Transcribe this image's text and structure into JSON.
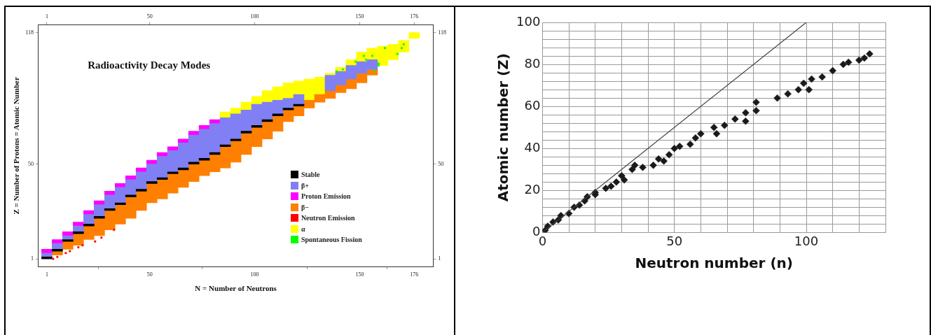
{
  "chart_data": [
    {
      "type": "bar",
      "title": "Radioactivity Decay Modes",
      "xlabel": "N = Number of Neutrons",
      "ylabel": "Z = Number of Protons = Atomic Number",
      "xlim": [
        -3,
        185
      ],
      "xticks": [
        1,
        50,
        100,
        150,
        176
      ],
      "x2lim": [
        -3,
        185
      ],
      "x2ticks": [
        1,
        50,
        100,
        150,
        176
      ],
      "ylim": [
        -3,
        122
      ],
      "yticks": [
        1,
        50,
        118
      ],
      "y2lim": [
        -3,
        122
      ],
      "y2ticks": [
        1,
        50,
        118
      ],
      "legend": "bottom right",
      "series": [
        {
          "name": "Stable",
          "color": "#000000",
          "x": [
            1,
            6,
            11,
            16,
            21,
            26,
            31,
            36,
            41,
            46,
            51,
            56,
            61,
            66,
            71,
            76,
            81,
            86,
            91,
            96,
            101,
            106,
            111,
            116,
            121
          ],
          "base": [
            1,
            5,
            10,
            14,
            18,
            22,
            26,
            29,
            33,
            36,
            40,
            42,
            45,
            47,
            50,
            52,
            55,
            59,
            62,
            66,
            69,
            72,
            75,
            78,
            80
          ],
          "values": [
            1,
            1,
            1,
            1,
            1,
            1,
            1,
            1,
            1,
            1,
            1,
            1,
            1,
            1,
            1,
            1,
            1,
            1,
            1,
            1,
            1,
            1,
            1,
            1,
            1
          ]
        },
        {
          "name": "β+",
          "color": "#8080f4",
          "x": [
            1,
            6,
            11,
            16,
            21,
            26,
            31,
            36,
            41,
            46,
            51,
            56,
            61,
            66,
            71,
            76,
            81,
            86,
            91,
            96,
            101,
            106,
            111,
            116,
            121,
            136,
            141,
            146,
            151,
            156
          ],
          "base": [
            2,
            6,
            11,
            15,
            19,
            23,
            27,
            30,
            34,
            37,
            41,
            43,
            46,
            48,
            51,
            53,
            56,
            60,
            63,
            67,
            70,
            73,
            76,
            79,
            81,
            88,
            91,
            94,
            97,
            99
          ],
          "values": [
            2,
            3,
            2,
            3,
            5,
            6,
            7,
            8,
            8,
            9,
            9,
            11,
            11,
            13,
            14,
            15,
            15,
            14,
            13,
            11,
            11,
            9,
            7,
            5,
            5,
            8,
            7,
            7,
            6,
            5
          ]
        },
        {
          "name": "Proton Emission",
          "color": "#ff00ff",
          "x": [
            1,
            6,
            11,
            16,
            21,
            26,
            31,
            36,
            41,
            46,
            51,
            56,
            61,
            66,
            71,
            76,
            81
          ],
          "base": [
            4,
            9,
            13,
            18,
            24,
            29,
            34,
            38,
            42,
            46,
            50,
            54,
            57,
            61,
            65,
            68,
            71
          ],
          "values": [
            2,
            2,
            2,
            2,
            2,
            2,
            2,
            2,
            2,
            2,
            2,
            2,
            2,
            2,
            2,
            2,
            2
          ]
        },
        {
          "name": "β−",
          "color": "#ff8000",
          "x": [
            6,
            11,
            16,
            21,
            26,
            31,
            36,
            41,
            46,
            51,
            56,
            61,
            66,
            71,
            76,
            81,
            86,
            91,
            96,
            101,
            106,
            111,
            116,
            121,
            126,
            131,
            136,
            141,
            146,
            151,
            156
          ],
          "base": [
            3,
            6,
            8,
            11,
            13,
            16,
            19,
            22,
            26,
            30,
            32,
            35,
            38,
            41,
            44,
            46,
            48,
            51,
            55,
            59,
            63,
            67,
            72,
            75,
            79,
            82,
            84,
            87,
            89,
            92,
            96
          ],
          "values": [
            2,
            4,
            6,
            7,
            9,
            10,
            10,
            11,
            10,
            10,
            10,
            10,
            9,
            9,
            8,
            9,
            11,
            11,
            11,
            10,
            9,
            8,
            6,
            5,
            4,
            4,
            4,
            4,
            5,
            5,
            3
          ]
        },
        {
          "name": "Neutron Emission",
          "type": "scatter",
          "marker": "square",
          "color": "#ff0000",
          "x": [
            4,
            6,
            10,
            12,
            16,
            18,
            24,
            27,
            33
          ],
          "values": [
            1,
            2,
            4,
            5,
            7,
            8,
            10,
            12,
            16
          ]
        },
        {
          "name": "α",
          "color": "#ffff00",
          "x": [
            86,
            91,
            96,
            101,
            106,
            111,
            116,
            121,
            126,
            131,
            136,
            141,
            146,
            151,
            156,
            161,
            166,
            171,
            176
          ],
          "base": [
            74,
            76,
            78,
            81,
            82,
            83,
            84,
            86,
            83,
            86,
            96,
            98,
            101,
            103,
            104,
            101,
            104,
            108,
            115
          ],
          "values": [
            3,
            3,
            4,
            4,
            6,
            7,
            8,
            7,
            11,
            9,
            1,
            2,
            3,
            5,
            6,
            10,
            8,
            6,
            3
          ]
        },
        {
          "name": "Spontaneous Fission",
          "type": "scatter",
          "marker": "square",
          "color": "#00ff00",
          "x": [
            162,
            171,
            170,
            168,
            156,
            153,
            148,
            142,
            139,
            159,
            159,
            157,
            152
          ],
          "values": [
            110,
            112,
            110,
            107,
            106,
            104,
            103,
            99,
            98,
            102,
            101,
            98,
            106
          ]
        }
      ]
    },
    {
      "type": "scatter",
      "xlabel": "Neutron number (n)",
      "ylabel": "Atomic number (Z)",
      "xlim": [
        0,
        130
      ],
      "xticks": [
        0,
        {
          "value": 10,
          "label": null
        },
        {
          "value": 20,
          "label": null
        },
        {
          "value": 30,
          "label": null
        },
        {
          "value": 40,
          "label": null
        },
        50,
        {
          "value": 60,
          "label": null
        },
        {
          "value": 70,
          "label": null
        },
        {
          "value": 80,
          "label": null
        },
        {
          "value": 90,
          "label": null
        },
        100,
        {
          "value": 110,
          "label": null
        },
        {
          "value": 120,
          "label": null
        },
        {
          "value": 130,
          "label": null
        }
      ],
      "ylim": [
        0,
        100
      ],
      "yticks": [
        0,
        {
          "value": 4,
          "label": null
        },
        {
          "value": 8,
          "label": null
        },
        {
          "value": 12,
          "label": null
        },
        {
          "value": 16,
          "label": null
        },
        20,
        {
          "value": 24,
          "label": null
        },
        {
          "value": 28,
          "label": null
        },
        {
          "value": 32,
          "label": null
        },
        {
          "value": 36,
          "label": null
        },
        40,
        {
          "value": 44,
          "label": null
        },
        {
          "value": 48,
          "label": null
        },
        {
          "value": 52,
          "label": null
        },
        {
          "value": 56,
          "label": null
        },
        60,
        {
          "value": 64,
          "label": null
        },
        {
          "value": 68,
          "label": null
        },
        {
          "value": 72,
          "label": null
        },
        {
          "value": 76,
          "label": null
        },
        80,
        {
          "value": 84,
          "label": null
        },
        {
          "value": 88,
          "label": null
        },
        {
          "value": 92,
          "label": null
        },
        {
          "value": 96,
          "label": null
        },
        100
      ],
      "grid": true,
      "marker": "diamond",
      "series": [
        {
          "type": "line",
          "color": "#404040",
          "marker": "none",
          "x": [
            0,
            100
          ],
          "values": [
            0,
            100
          ]
        },
        {
          "color": "#1a1a1a",
          "x": [
            1,
            2,
            4,
            6,
            7,
            10,
            12,
            14,
            16,
            17,
            20,
            20,
            24,
            26,
            28,
            30,
            31,
            34,
            35,
            38,
            42,
            44,
            46,
            48,
            50,
            52,
            56,
            58,
            60,
            65,
            66,
            69,
            73,
            77,
            77,
            81,
            81,
            89,
            93,
            97,
            99,
            101,
            102,
            106,
            110,
            114,
            116,
            120,
            122,
            124
          ],
          "values": [
            1,
            3,
            5,
            6,
            8,
            9,
            12,
            13,
            15,
            17,
            19,
            18,
            21,
            22,
            24,
            27,
            25,
            30,
            32,
            31,
            32,
            35,
            34,
            37,
            40,
            41,
            42,
            45,
            47,
            50,
            47,
            51,
            54,
            57,
            53,
            62,
            58,
            64,
            66,
            68,
            71,
            68,
            73,
            74,
            77,
            80,
            81,
            82,
            83,
            85
          ]
        }
      ]
    }
  ]
}
